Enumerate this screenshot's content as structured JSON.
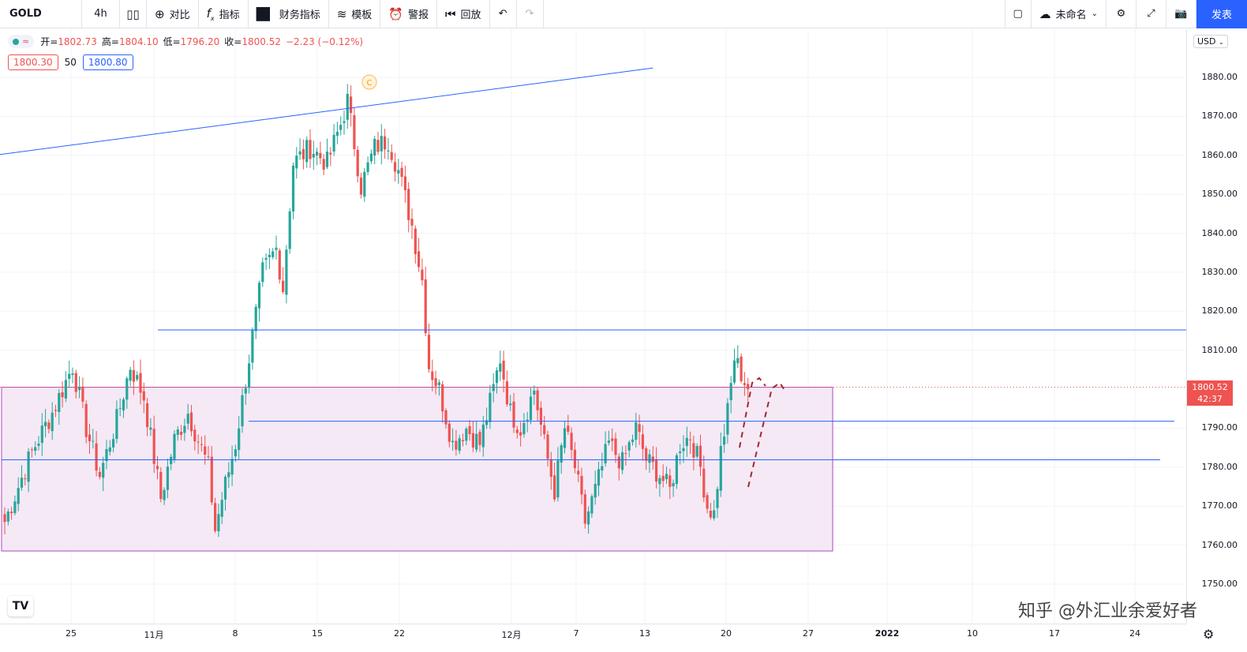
{
  "toolbar": {
    "symbol": "GOLD",
    "interval": "4h",
    "compare": "对比",
    "indicators": "指标",
    "financials": "财务指标",
    "templates": "模板",
    "alerts": "警报",
    "replay": "回放",
    "layout_name": "未命名",
    "publish": "发表"
  },
  "legend": {
    "open_label": "开=",
    "open": "1802.73",
    "high_label": "高=",
    "high": "1804.10",
    "low_label": "低=",
    "low": "1796.20",
    "close_label": "收=",
    "close": "1800.52",
    "change": "−2.23 (−0.12%)",
    "bid": "1800.30",
    "spread": "50",
    "ask": "1800.80"
  },
  "price_axis": {
    "currency": "USD",
    "labels": [
      "1880.00",
      "1870.00",
      "1860.00",
      "1850.00",
      "1840.00",
      "1830.00",
      "1820.00",
      "1810.00",
      "1790.00",
      "1780.00",
      "1770.00",
      "1760.00",
      "1750.00"
    ],
    "current_price": "1800.52",
    "countdown": "42:37"
  },
  "time_axis": {
    "labels": [
      "25",
      "11月",
      "8",
      "15",
      "22",
      "12月",
      "7",
      "13",
      "20",
      "27",
      "2022",
      "10",
      "17",
      "24"
    ]
  },
  "watermark": "知乎 @外汇业余爱好者",
  "colors": {
    "up": "#26a69a",
    "down": "#ef5350",
    "line": "#2962ff",
    "box_fill": "#f3e5f5"
  },
  "chart_data": {
    "type": "candlestick",
    "symbol": "GOLD",
    "interval": "4h",
    "ylim": [
      1748,
      1888
    ],
    "y_ticks": [
      1880,
      1870,
      1860,
      1850,
      1840,
      1830,
      1820,
      1810,
      1790,
      1780,
      1770,
      1760,
      1750
    ],
    "current_price": 1800.52,
    "anchor_closes": [
      [
        0,
        1766
      ],
      [
        8,
        1784
      ],
      [
        14,
        1794
      ],
      [
        20,
        1806
      ],
      [
        24,
        1790
      ],
      [
        28,
        1778
      ],
      [
        33,
        1792
      ],
      [
        37,
        1806
      ],
      [
        41,
        1798
      ],
      [
        46,
        1772
      ],
      [
        50,
        1787
      ],
      [
        54,
        1794
      ],
      [
        60,
        1780
      ],
      [
        62,
        1764
      ],
      [
        64,
        1772
      ],
      [
        68,
        1786
      ],
      [
        72,
        1808
      ],
      [
        76,
        1830
      ],
      [
        80,
        1836
      ],
      [
        82,
        1826
      ],
      [
        85,
        1858
      ],
      [
        90,
        1862
      ],
      [
        95,
        1858
      ],
      [
        99,
        1868
      ],
      [
        101,
        1874
      ],
      [
        105,
        1852
      ],
      [
        109,
        1862
      ],
      [
        113,
        1864
      ],
      [
        116,
        1856
      ],
      [
        120,
        1842
      ],
      [
        123,
        1828
      ],
      [
        125,
        1806
      ],
      [
        128,
        1800
      ],
      [
        132,
        1786
      ],
      [
        136,
        1790
      ],
      [
        140,
        1786
      ],
      [
        144,
        1800
      ],
      [
        146,
        1808
      ],
      [
        149,
        1794
      ],
      [
        152,
        1790
      ],
      [
        156,
        1800
      ],
      [
        159,
        1786
      ],
      [
        162,
        1774
      ],
      [
        165,
        1790
      ],
      [
        168,
        1780
      ],
      [
        171,
        1766
      ],
      [
        174,
        1774
      ],
      [
        178,
        1786
      ],
      [
        182,
        1781
      ],
      [
        186,
        1790
      ],
      [
        189,
        1782
      ],
      [
        193,
        1778
      ],
      [
        196,
        1774
      ],
      [
        199,
        1786
      ],
      [
        202,
        1788
      ],
      [
        205,
        1780
      ],
      [
        207,
        1770
      ],
      [
        209,
        1768
      ],
      [
        211,
        1784
      ],
      [
        213,
        1794
      ],
      [
        215,
        1808
      ],
      [
        217,
        1804
      ],
      [
        219,
        1800
      ]
    ],
    "horizontal_levels": [
      1815.2,
      1791.8,
      1781.9
    ],
    "range_box": {
      "top": 1800.5,
      "bottom": 1758.5
    },
    "trendline": {
      "from": [
        0,
        1860.2
      ],
      "to": [
        191,
        1882.4
      ]
    }
  }
}
